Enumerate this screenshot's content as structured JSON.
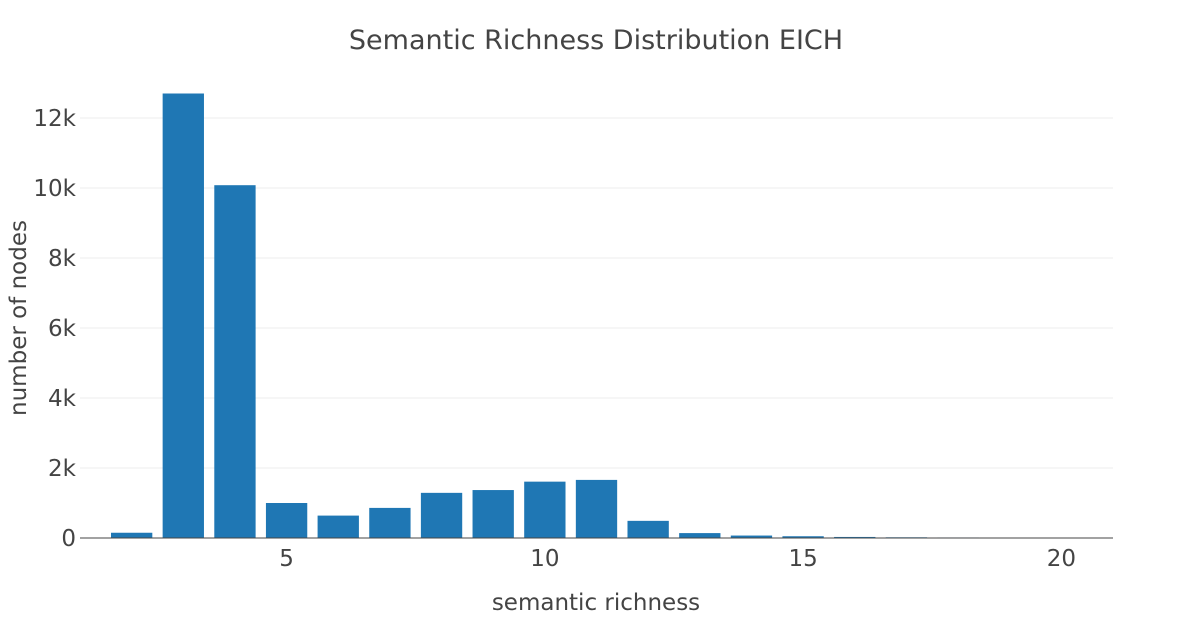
{
  "chart_data": {
    "type": "bar",
    "title": "Semantic Richness Distribution EICH",
    "xlabel": "semantic richness",
    "ylabel": "number of nodes",
    "x": [
      2,
      3,
      4,
      5,
      6,
      7,
      8,
      9,
      10,
      11,
      12,
      13,
      14,
      15,
      16,
      17,
      18,
      19,
      20
    ],
    "values": [
      150,
      12700,
      10080,
      1000,
      640,
      860,
      1290,
      1370,
      1610,
      1660,
      490,
      140,
      70,
      50,
      30,
      20,
      15,
      10,
      5
    ],
    "xlim": [
      1.0,
      21.0
    ],
    "ylim": [
      0,
      13000
    ],
    "x_ticks": [
      5,
      10,
      15,
      20
    ],
    "x_tick_labels": [
      "5",
      "10",
      "15",
      "20"
    ],
    "y_ticks": [
      0,
      2000,
      4000,
      6000,
      8000,
      10000,
      12000
    ],
    "y_tick_labels": [
      "0",
      "2k",
      "4k",
      "6k",
      "8k",
      "10k",
      "12k"
    ],
    "bar_color": "#1f77b4",
    "grid": true,
    "legend": false
  }
}
